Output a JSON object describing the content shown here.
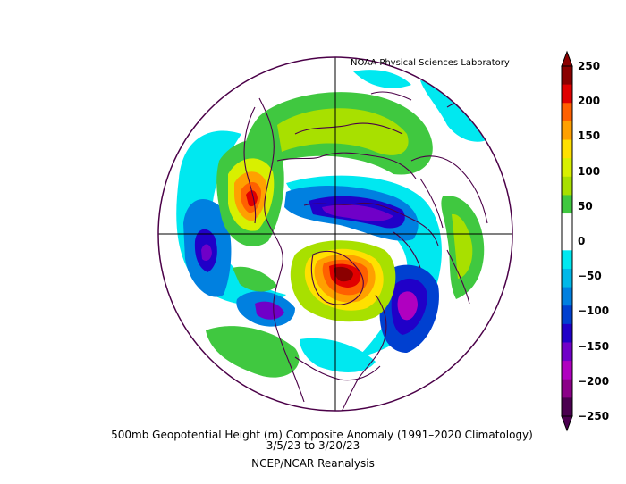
{
  "header": {
    "organization": "NOAA Physical Sciences Laboratory"
  },
  "footer": {
    "title": "500mb Geopotential Height (m) Composite Anomaly (1991–2020 Climatology)",
    "dates": "3/5/23   to 3/20/23",
    "source": "NCEP/NCAR Reanalysis"
  },
  "legend": {
    "ticks": [
      "250",
      "200",
      "150",
      "100",
      "50",
      "0",
      "−50",
      "−100",
      "−150",
      "−200",
      "−250"
    ],
    "colors": [
      "#8b0000",
      "#e00000",
      "#ff6000",
      "#ffa000",
      "#ffe000",
      "#d8f000",
      "#a8e000",
      "#40c840",
      "#ffffff",
      "#ffffff",
      "#00e8f0",
      "#00b8e8",
      "#0080e0",
      "#0040d0",
      "#2000c8",
      "#7000c8",
      "#b000c0",
      "#8b0088",
      "#4b0050"
    ]
  },
  "map": {
    "projection": "polar-stereographic",
    "hemisphere": "north"
  }
}
